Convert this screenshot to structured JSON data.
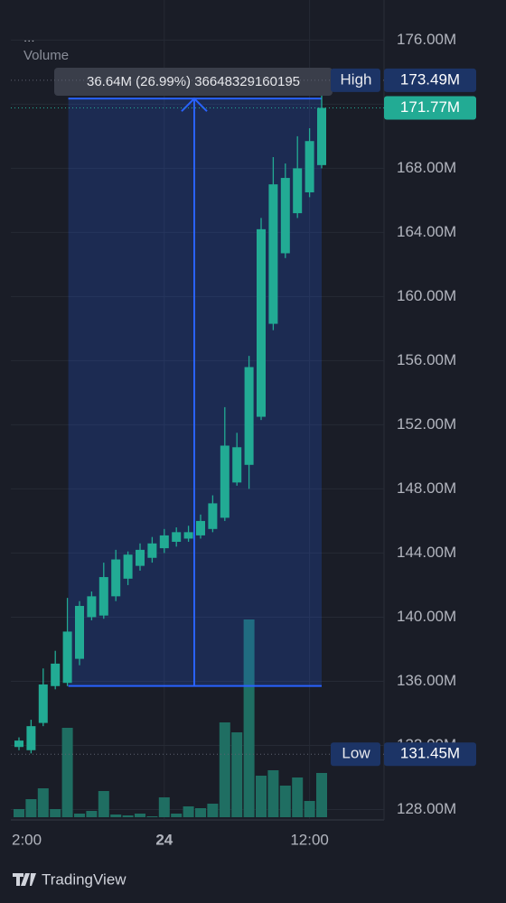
{
  "chart_data": {
    "type": "candlestick",
    "legend": [
      "...",
      "Volume"
    ],
    "categories": [
      "2:00",
      null,
      null,
      null,
      null,
      null,
      null,
      null,
      null,
      null,
      null,
      null,
      "24",
      null,
      null,
      null,
      null,
      null,
      null,
      null,
      null,
      null,
      null,
      null,
      "12:00",
      null
    ],
    "open": [
      131.9,
      131.7,
      133.4,
      135.7,
      135.9,
      137.4,
      140.0,
      140.1,
      141.3,
      142.4,
      143.2,
      143.7,
      144.3,
      144.7,
      144.9,
      145.1,
      145.5,
      146.2,
      148.4,
      149.5,
      152.5,
      158.3,
      162.7,
      165.2,
      166.5,
      168.2
    ],
    "high": [
      132.5,
      133.6,
      136.8,
      137.9,
      141.2,
      141.0,
      141.6,
      143.4,
      144.2,
      144.1,
      144.6,
      145.0,
      145.5,
      145.6,
      145.7,
      146.4,
      147.6,
      153.1,
      151.5,
      156.3,
      164.9,
      168.7,
      168.3,
      170.0,
      170.5,
      173.49
    ],
    "low": [
      131.7,
      131.5,
      133.2,
      135.5,
      135.7,
      137.0,
      139.8,
      139.9,
      141.0,
      142.0,
      142.9,
      143.4,
      144.0,
      144.4,
      144.7,
      144.9,
      145.3,
      146.0,
      148.2,
      148.0,
      152.3,
      157.9,
      162.4,
      164.9,
      166.2,
      168.0
    ],
    "close": [
      132.3,
      133.2,
      135.8,
      137.1,
      139.1,
      140.7,
      141.3,
      142.5,
      143.6,
      143.9,
      144.2,
      144.6,
      145.1,
      145.3,
      145.3,
      146.0,
      147.1,
      150.7,
      150.6,
      155.6,
      164.2,
      167.0,
      167.4,
      168.0,
      169.7,
      171.77
    ],
    "volume": [
      12,
      23,
      35,
      12,
      102,
      7,
      10,
      32,
      6,
      5,
      7,
      4,
      25,
      7,
      15,
      13,
      18,
      108,
      97,
      222,
      49,
      55,
      38,
      47,
      21,
      52
    ],
    "volume_ylim": [
      0,
      250
    ],
    "color": "#22ab94",
    "volume_color": "#1f6e62",
    "ylim": [
      127.35,
      178.5
    ],
    "yticks": [
      {
        "value": 128,
        "label": "128.00M"
      },
      {
        "value": 132,
        "label": "132.00M"
      },
      {
        "value": 136,
        "label": "136.00M"
      },
      {
        "value": 140,
        "label": "140.00M"
      },
      {
        "value": 144,
        "label": "144.00M"
      },
      {
        "value": 148,
        "label": "148.00M"
      },
      {
        "value": 152,
        "label": "152.00M"
      },
      {
        "value": 156,
        "label": "156.00M"
      },
      {
        "value": 160,
        "label": "160.00M"
      },
      {
        "value": 164,
        "label": "164.00M"
      },
      {
        "value": 168,
        "label": "168.00M"
      },
      {
        "value": 172,
        "label": "172.00M"
      },
      {
        "value": 176,
        "label": "176.00M"
      }
    ],
    "grid": true,
    "high_marker": {
      "name": "High",
      "value": 173.49,
      "label": "173.49M"
    },
    "low_marker": {
      "name": "Low",
      "value": 131.45,
      "label": "131.45M"
    },
    "last_price": {
      "value": 171.77,
      "label": "171.77M"
    },
    "measure": {
      "label": "36.64M (26.99%) 36648329160195",
      "from": 135.71,
      "to": 172.35,
      "from_index": 4,
      "to_index": 25
    },
    "brand": "TradingView"
  }
}
